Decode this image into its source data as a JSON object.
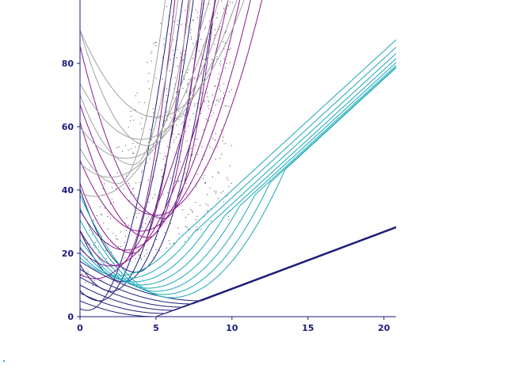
{
  "chart_data": {
    "type": "line",
    "title": "",
    "xlabel": "",
    "ylabel": "",
    "xlim": [
      0,
      20.8
    ],
    "ylim": [
      0,
      100
    ],
    "x_ticks": [
      0,
      5,
      10,
      15,
      20
    ],
    "y_ticks": [
      0,
      20,
      40,
      60,
      80
    ],
    "x_tick_labels": [
      "0",
      "5",
      "10",
      "15",
      "20"
    ],
    "y_tick_labels": [
      "0",
      "20",
      "40",
      "60",
      "80"
    ],
    "grid": false,
    "legend": "none",
    "colors": {
      "axis": "#1a1a80",
      "navy": "#1e1e78",
      "teal": "#18a8b8",
      "purple": "#8a1a8a",
      "gray": "#a0a0a0",
      "dots": "#333333"
    },
    "families": [
      {
        "color": "navy",
        "slope": 2.0,
        "shifts": [
          0,
          1,
          2,
          3,
          4,
          5
        ],
        "line_slope": 1.8,
        "vertex_x": [
          5.0,
          5.6,
          6.2,
          6.8,
          7.4,
          8.0
        ],
        "vertex_y": [
          0.0,
          1.0,
          2.0,
          3.0,
          4.0,
          5.0
        ]
      },
      {
        "color": "teal",
        "slope": 4.0,
        "shifts": [
          0,
          1,
          2,
          3,
          4,
          5,
          6,
          7
        ],
        "apex_y": [
          13.0,
          12.0,
          11.0,
          10.0,
          9.0,
          8.0,
          7.0,
          6.0
        ],
        "apex_x": [
          2.5,
          3.0,
          3.5,
          4.0,
          4.5,
          5.0,
          5.5,
          6.0
        ]
      },
      {
        "color": "purple",
        "apex": [
          [
            1.0,
            12.0
          ],
          [
            2.0,
            16.0
          ],
          [
            3.0,
            21.0
          ],
          [
            4.0,
            27.0
          ],
          [
            5.0,
            32.0
          ]
        ]
      },
      {
        "color": "gray",
        "apex": [
          [
            1.0,
            38.0
          ],
          [
            2.0,
            44.0
          ],
          [
            3.0,
            50.0
          ],
          [
            4.0,
            56.0
          ],
          [
            5.0,
            63.0
          ]
        ]
      }
    ]
  }
}
